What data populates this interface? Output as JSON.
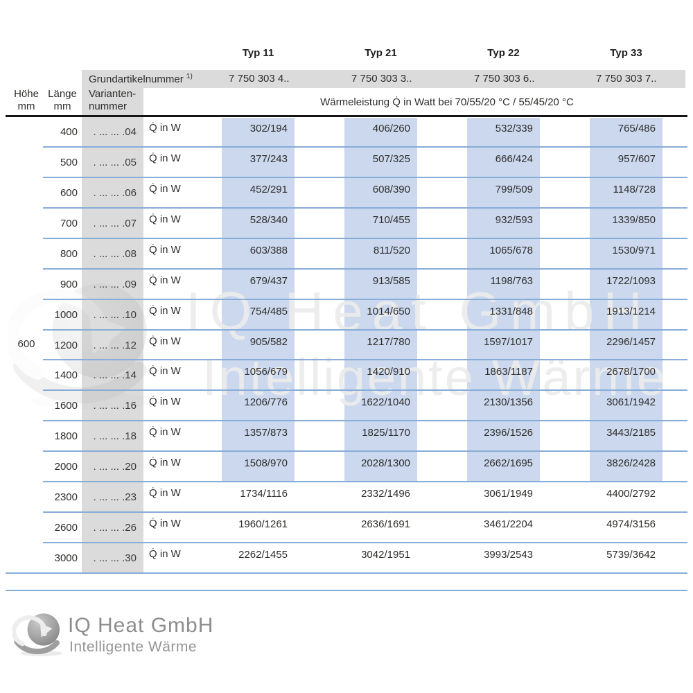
{
  "colors": {
    "highlight_blue": "#cbd8ee",
    "line_blue": "#88acd8",
    "band_gray": "#dbdbdb",
    "rule_black": "#161616",
    "logo_gray": "#8d8d8d"
  },
  "header": {
    "typ_labels": [
      "Typ 11",
      "Typ 21",
      "Typ 22",
      "Typ 33"
    ],
    "grundartikel_label": "Grundartikelnummer",
    "grundartikel_sup": "1)",
    "grundartikel_values": [
      "7 750 303 4..",
      "7 750 303 3..",
      "7 750 303 6..",
      "7 750 303 7.."
    ],
    "col_hoehe_line1": "Höhe",
    "col_hoehe_line2": "mm",
    "col_laenge_line1": "Länge",
    "col_laenge_line2": "mm",
    "col_variante_line1": "Varianten-",
    "col_variante_line2": "nummer",
    "leistung_header": "Wärmeleistung Q̇ in Watt bei 70/55/20 °C / 55/45/20 °C"
  },
  "table": {
    "hoehe_value": "600",
    "q_label": "Q̇ in W",
    "rows": [
      {
        "laenge": "400",
        "variante": ". ... ... .04",
        "values": [
          "302/194",
          "406/260",
          "532/339",
          "765/486"
        ],
        "highlight": true
      },
      {
        "laenge": "500",
        "variante": ". ... ... .05",
        "values": [
          "377/243",
          "507/325",
          "666/424",
          "957/607"
        ],
        "highlight": true
      },
      {
        "laenge": "600",
        "variante": ". ... ... .06",
        "values": [
          "452/291",
          "608/390",
          "799/509",
          "1148/728"
        ],
        "highlight": true
      },
      {
        "laenge": "700",
        "variante": ". ... ... .07",
        "values": [
          "528/340",
          "710/455",
          "932/593",
          "1339/850"
        ],
        "highlight": true
      },
      {
        "laenge": "800",
        "variante": ". ... ... .08",
        "values": [
          "603/388",
          "811/520",
          "1065/678",
          "1530/971"
        ],
        "highlight": true
      },
      {
        "laenge": "900",
        "variante": ". ... ... .09",
        "values": [
          "679/437",
          "913/585",
          "1198/763",
          "1722/1093"
        ],
        "highlight": true
      },
      {
        "laenge": "1000",
        "variante": ". ... ... .10",
        "values": [
          "754/485",
          "1014/650",
          "1331/848",
          "1913/1214"
        ],
        "highlight": true
      },
      {
        "laenge": "1200",
        "variante": ". ... ... .12",
        "values": [
          "905/582",
          "1217/780",
          "1597/1017",
          "2296/1457"
        ],
        "highlight": true
      },
      {
        "laenge": "1400",
        "variante": ". ... ... .14",
        "values": [
          "1056/679",
          "1420/910",
          "1863/1187",
          "2678/1700"
        ],
        "highlight": true
      },
      {
        "laenge": "1600",
        "variante": ". ... ... .16",
        "values": [
          "1206/776",
          "1622/1040",
          "2130/1356",
          "3061/1942"
        ],
        "highlight": true
      },
      {
        "laenge": "1800",
        "variante": ". ... ... .18",
        "values": [
          "1357/873",
          "1825/1170",
          "2396/1526",
          "3443/2185"
        ],
        "highlight": true
      },
      {
        "laenge": "2000",
        "variante": ". ... ... .20",
        "values": [
          "1508/970",
          "2028/1300",
          "2662/1695",
          "3826/2428"
        ],
        "highlight": true
      },
      {
        "laenge": "2300",
        "variante": ". ... ... .23",
        "values": [
          "1734/1116",
          "2332/1496",
          "3061/1949",
          "4400/2792"
        ],
        "highlight": false
      },
      {
        "laenge": "2600",
        "variante": ". ... ... .26",
        "values": [
          "1960/1261",
          "2636/1691",
          "3461/2204",
          "4974/3156"
        ],
        "highlight": false
      },
      {
        "laenge": "3000",
        "variante": ". ... ... .30",
        "values": [
          "2262/1455",
          "3042/1951",
          "3993/2543",
          "5739/3642"
        ],
        "highlight": false
      }
    ]
  },
  "watermark": {
    "line1": "IQ Heat GmbH",
    "line2": "Intelligente Wärme"
  },
  "footer_logo": {
    "title": "IQ Heat GmbH",
    "subtitle": "Intelligente Wärme"
  }
}
